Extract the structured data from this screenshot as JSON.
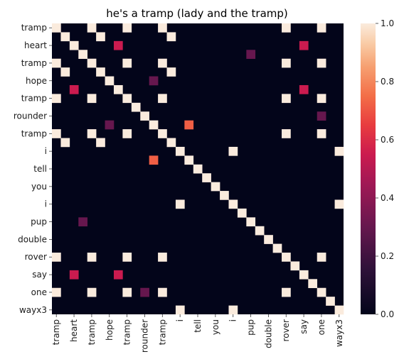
{
  "chart_data": {
    "type": "heatmap",
    "title": "he's a tramp (lady and the tramp)",
    "words": [
      "tramp",
      "heart",
      "tramp",
      "hope",
      "tramp",
      "rounder",
      "tramp",
      "i",
      "tell",
      "you",
      "i",
      "pup",
      "double",
      "rover",
      "say",
      "one",
      "wayx3"
    ],
    "x_tick_indices": [
      0,
      2,
      4,
      6,
      8,
      10,
      12,
      14,
      16,
      18,
      20,
      22,
      24,
      26,
      28,
      30,
      32
    ],
    "y_tick_indices": [
      0,
      2,
      4,
      6,
      8,
      10,
      12,
      14,
      16,
      18,
      20,
      22,
      24,
      26,
      28,
      30,
      32
    ],
    "sequence": [
      "tramp",
      "tramp",
      "heart",
      "heart",
      "tramp",
      "tramp",
      "hope",
      "hope",
      "tramp",
      "tramp",
      "rounder",
      "rounder",
      "tramp",
      "tramp",
      "i",
      "i",
      "tell",
      "tell",
      "you",
      "you",
      "i",
      "i",
      "pup",
      "pup",
      "double",
      "double",
      "rover",
      "rover",
      "say",
      "say",
      "one",
      "one",
      "wayx3"
    ],
    "matrix": [
      [
        1,
        0,
        0,
        0,
        1,
        0,
        0,
        0,
        1,
        0,
        0,
        0,
        1,
        0,
        0,
        0,
        0,
        0,
        0,
        0,
        0,
        0,
        0,
        0,
        0,
        0,
        1,
        0,
        0,
        0,
        1,
        0,
        0
      ],
      [
        0,
        1,
        0,
        0,
        0,
        1,
        0,
        0,
        0,
        0,
        0,
        0,
        0,
        1,
        0,
        0,
        0,
        0,
        0,
        0,
        0,
        0,
        0,
        0,
        0,
        0,
        0,
        0,
        0,
        0,
        0,
        0,
        0
      ],
      [
        0,
        0,
        1,
        0,
        0,
        0,
        0,
        0,
        0,
        0,
        0,
        0,
        0,
        0,
        0,
        0,
        0,
        0,
        0,
        0,
        0,
        0,
        0,
        0,
        0,
        0,
        0,
        0,
        0,
        0,
        0,
        0,
        0
      ],
      [
        0,
        0,
        0,
        1,
        0,
        0,
        0,
        0,
        0,
        0,
        0,
        0,
        0,
        0,
        0,
        0,
        0,
        0,
        0,
        0,
        0,
        0,
        0,
        0,
        0,
        0,
        0,
        0,
        0,
        0,
        0,
        0,
        0
      ],
      [
        1,
        0,
        0,
        0,
        1,
        0,
        0,
        0,
        1,
        0,
        0,
        0,
        1,
        0,
        0,
        0,
        0,
        0,
        0,
        0,
        0,
        0,
        0,
        0,
        0,
        0,
        1,
        0,
        0,
        0,
        1,
        0,
        0
      ],
      [
        0,
        1,
        0,
        0,
        0,
        1,
        0,
        0,
        0,
        0,
        0,
        0,
        0,
        1,
        0,
        0,
        0,
        0,
        0,
        0,
        0,
        0,
        0,
        0,
        0,
        0,
        0,
        0,
        0,
        0,
        0,
        0,
        0
      ],
      [
        0,
        0,
        0,
        0,
        0,
        0,
        1,
        0,
        0,
        0,
        0,
        0,
        0,
        0,
        0,
        0,
        0,
        0,
        0,
        0,
        0,
        0,
        0,
        0,
        0,
        0,
        0,
        0,
        0,
        0,
        0,
        0,
        0
      ],
      [
        0,
        0,
        0,
        0,
        0,
        0,
        0,
        1,
        0,
        0,
        0,
        0,
        0,
        0,
        0,
        0,
        0,
        0,
        0,
        0,
        0,
        0,
        0,
        0,
        0,
        0,
        0,
        0,
        0,
        0,
        0,
        0,
        0
      ],
      [
        1,
        0,
        0,
        0,
        1,
        0,
        0,
        0,
        1,
        0,
        0,
        0,
        1,
        0,
        0,
        0,
        0,
        0,
        0,
        0,
        0,
        0,
        0,
        0,
        0,
        0,
        1,
        0,
        0,
        0,
        1,
        0,
        0
      ],
      [
        0,
        0,
        0,
        0,
        0,
        0,
        0,
        0,
        0,
        1,
        0,
        0,
        0,
        0,
        0,
        0,
        0,
        0,
        0,
        0,
        0,
        0,
        0,
        0,
        0,
        0,
        0,
        0,
        0,
        0,
        0,
        0,
        0
      ],
      [
        0,
        0,
        0,
        0,
        0,
        0,
        0,
        0,
        0,
        0,
        1,
        0,
        0,
        0,
        0,
        0,
        0,
        0,
        0,
        0,
        0,
        0,
        0,
        0,
        0,
        0,
        0,
        0,
        0,
        0,
        0,
        0,
        0
      ],
      [
        0,
        0,
        0,
        0,
        0,
        0,
        0,
        0,
        0,
        0,
        0,
        1,
        0,
        0,
        0,
        0,
        0,
        0,
        0,
        0,
        0,
        0,
        0,
        0,
        0,
        0,
        0,
        0,
        0,
        0,
        0,
        0,
        0
      ],
      [
        1,
        0,
        0,
        0,
        1,
        0,
        0,
        0,
        1,
        0,
        0,
        0,
        1,
        0,
        0,
        0,
        0,
        0,
        0,
        0,
        0,
        0,
        0,
        0,
        0,
        0,
        1,
        0,
        0,
        0,
        1,
        0,
        0
      ],
      [
        0,
        1,
        0,
        0,
        0,
        1,
        0,
        0,
        0,
        0,
        0,
        0,
        0,
        1,
        0,
        0,
        0,
        0,
        0,
        0,
        0,
        0,
        0,
        0,
        0,
        0,
        0,
        0,
        0,
        0,
        0,
        0,
        0
      ],
      [
        0,
        0,
        0,
        0,
        0,
        0,
        0,
        0,
        0,
        0,
        0,
        0,
        0,
        0,
        1,
        0,
        0,
        0,
        0,
        0,
        1,
        0,
        0,
        0,
        0,
        0,
        0,
        0,
        0,
        0,
        0,
        0,
        1
      ],
      [
        0,
        0,
        0,
        0,
        0,
        0,
        0,
        0,
        0,
        0,
        0,
        0,
        0,
        0,
        0,
        1,
        0,
        0,
        0,
        0,
        0,
        0,
        0,
        0,
        0,
        0,
        0,
        0,
        0,
        0,
        0,
        0,
        0
      ],
      [
        0,
        0,
        0,
        0,
        0,
        0,
        0,
        0,
        0,
        0,
        0,
        0,
        0,
        0,
        0,
        0,
        1,
        0,
        0,
        0,
        0,
        0,
        0,
        0,
        0,
        0,
        0,
        0,
        0,
        0,
        0,
        0,
        0
      ],
      [
        0,
        0,
        0,
        0,
        0,
        0,
        0,
        0,
        0,
        0,
        0,
        0,
        0,
        0,
        0,
        0,
        0,
        1,
        0,
        0,
        0,
        0,
        0,
        0,
        0,
        0,
        0,
        0,
        0,
        0,
        0,
        0,
        0
      ],
      [
        0,
        0,
        0,
        0,
        0,
        0,
        0,
        0,
        0,
        0,
        0,
        0,
        0,
        0,
        0,
        0,
        0,
        0,
        1,
        0,
        0,
        0,
        0,
        0,
        0,
        0,
        0,
        0,
        0,
        0,
        0,
        0,
        0
      ],
      [
        0,
        0,
        0,
        0,
        0,
        0,
        0,
        0,
        0,
        0,
        0,
        0,
        0,
        0,
        0,
        0,
        0,
        0,
        0,
        1,
        0,
        0,
        0,
        0,
        0,
        0,
        0,
        0,
        0,
        0,
        0,
        0,
        0
      ],
      [
        0,
        0,
        0,
        0,
        0,
        0,
        0,
        0,
        0,
        0,
        0,
        0,
        0,
        0,
        1,
        0,
        0,
        0,
        0,
        0,
        1,
        0,
        0,
        0,
        0,
        0,
        0,
        0,
        0,
        0,
        0,
        0,
        1
      ],
      [
        0,
        0,
        0,
        0,
        0,
        0,
        0,
        0,
        0,
        0,
        0,
        0,
        0,
        0,
        0,
        0,
        0,
        0,
        0,
        0,
        0,
        1,
        0,
        0,
        0,
        0,
        0,
        0,
        0,
        0,
        0,
        0,
        0
      ],
      [
        0,
        0,
        0,
        0,
        0,
        0,
        0,
        0,
        0,
        0,
        0,
        0,
        0,
        0,
        0,
        0,
        0,
        0,
        0,
        0,
        0,
        0,
        1,
        0,
        0,
        0,
        0,
        0,
        0,
        0,
        0,
        0,
        0
      ],
      [
        0,
        0,
        0,
        0,
        0,
        0,
        0,
        0,
        0,
        0,
        0,
        0,
        0,
        0,
        0,
        0,
        0,
        0,
        0,
        0,
        0,
        0,
        0,
        1,
        0,
        0,
        0,
        0,
        0,
        0,
        0,
        0,
        0
      ],
      [
        0,
        0,
        0,
        0,
        0,
        0,
        0,
        0,
        0,
        0,
        0,
        0,
        0,
        0,
        0,
        0,
        0,
        0,
        0,
        0,
        0,
        0,
        0,
        0,
        1,
        0,
        0,
        0,
        0,
        0,
        0,
        0,
        0
      ],
      [
        0,
        0,
        0,
        0,
        0,
        0,
        0,
        0,
        0,
        0,
        0,
        0,
        0,
        0,
        0,
        0,
        0,
        0,
        0,
        0,
        0,
        0,
        0,
        0,
        0,
        1,
        0,
        0,
        0,
        0,
        0,
        0,
        0
      ],
      [
        1,
        0,
        0,
        0,
        1,
        0,
        0,
        0,
        1,
        0,
        0,
        0,
        1,
        0,
        0,
        0,
        0,
        0,
        0,
        0,
        0,
        0,
        0,
        0,
        0,
        0,
        1,
        0,
        0,
        0,
        1,
        0,
        0
      ],
      [
        0,
        0,
        0,
        0,
        0,
        0,
        0,
        0,
        0,
        0,
        0,
        0,
        0,
        0,
        0,
        0,
        0,
        0,
        0,
        0,
        0,
        0,
        0,
        0,
        0,
        0,
        0,
        1,
        0,
        0,
        0,
        0,
        0
      ],
      [
        0,
        0,
        0,
        0,
        0,
        0,
        0,
        0,
        0,
        0,
        0,
        0,
        0,
        0,
        0,
        0,
        0,
        0,
        0,
        0,
        0,
        0,
        0,
        0,
        0,
        0,
        0,
        0,
        1,
        0,
        0,
        0,
        0
      ],
      [
        0,
        0,
        0,
        0,
        0,
        0,
        0,
        0,
        0,
        0,
        0,
        0,
        0,
        0,
        0,
        0,
        0,
        0,
        0,
        0,
        0,
        0,
        0,
        0,
        0,
        0,
        0,
        0,
        0,
        1,
        0,
        0,
        0
      ],
      [
        1,
        0,
        0,
        0,
        1,
        0,
        0,
        0,
        1,
        0,
        0,
        0,
        1,
        0,
        0,
        0,
        0,
        0,
        0,
        0,
        0,
        0,
        0,
        0,
        0,
        0,
        1,
        0,
        0,
        0,
        1,
        0,
        0
      ],
      [
        0,
        0,
        0,
        0,
        0,
        0,
        0,
        0,
        0,
        0,
        0,
        0,
        0,
        0,
        0,
        0,
        0,
        0,
        0,
        0,
        0,
        0,
        0,
        0,
        0,
        0,
        0,
        0,
        0,
        0,
        0,
        1,
        0
      ],
      [
        0,
        0,
        0,
        0,
        0,
        0,
        0,
        0,
        0,
        0,
        0,
        0,
        0,
        0,
        1,
        0,
        0,
        0,
        0,
        0,
        1,
        0,
        0,
        0,
        0,
        0,
        0,
        0,
        0,
        0,
        0,
        0,
        1
      ]
    ],
    "partial_cells": [
      {
        "row": 2,
        "col": 7,
        "value": 0.55
      },
      {
        "row": 7,
        "col": 2,
        "value": 0.55
      },
      {
        "row": 2,
        "col": 28,
        "value": 0.55
      },
      {
        "row": 28,
        "col": 2,
        "value": 0.55
      },
      {
        "row": 6,
        "col": 11,
        "value": 0.3
      },
      {
        "row": 11,
        "col": 6,
        "value": 0.3
      },
      {
        "row": 3,
        "col": 22,
        "value": 0.3
      },
      {
        "row": 22,
        "col": 3,
        "value": 0.3
      },
      {
        "row": 7,
        "col": 28,
        "value": 0.55
      },
      {
        "row": 28,
        "col": 7,
        "value": 0.55
      },
      {
        "row": 10,
        "col": 30,
        "value": 0.3
      },
      {
        "row": 30,
        "col": 10,
        "value": 0.3
      },
      {
        "row": 11,
        "col": 15,
        "value": 0.72
      },
      {
        "row": 15,
        "col": 11,
        "value": 0.72
      }
    ],
    "colorbar": {
      "min": 0.0,
      "max": 1.0,
      "ticks": [
        "0.0",
        "0.2",
        "0.4",
        "0.6",
        "0.8",
        "1.0"
      ],
      "tick_values": [
        0.0,
        0.2,
        0.4,
        0.6,
        0.8,
        1.0
      ]
    },
    "colormap": "rocket"
  }
}
